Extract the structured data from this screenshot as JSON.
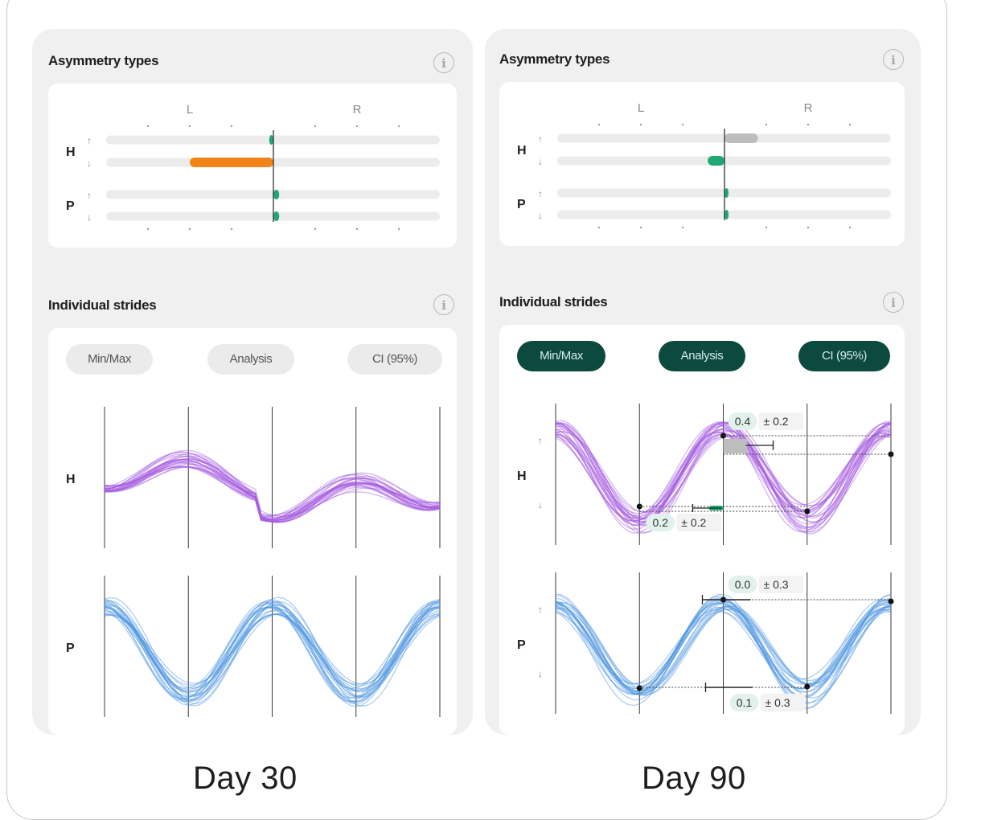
{
  "section_titles": {
    "asymmetry": "Asymmetry types",
    "strides": "Individual strides"
  },
  "icons": {
    "info": "info-icon",
    "up_arrow": "↑",
    "down_arrow": "↓",
    "info_glyph": "i"
  },
  "toggle_labels": [
    "Min/Max",
    "Analysis",
    "CI (95%)"
  ],
  "colors": {
    "head_strides": "#a45be0",
    "pelvis_strides": "#4a93e0",
    "orange_bar": "#f08418",
    "green_bar": "#1ea874",
    "gray_bar": "#bdbdbd",
    "toggle_on": "#0c4a40"
  },
  "panels": [
    {
      "day_label": "Day 30",
      "toggles_active": false,
      "asymmetry": {
        "side_labels": [
          "L",
          "R"
        ],
        "rows": [
          {
            "group": "H",
            "arrow": "↑",
            "value": -0.05,
            "color": "green"
          },
          {
            "group": "H",
            "arrow": "↓",
            "value": -1.0,
            "color": "orange"
          },
          {
            "group": "P",
            "arrow": "↑",
            "value": 0.07,
            "color": "green"
          },
          {
            "group": "P",
            "arrow": "↓",
            "value": 0.07,
            "color": "green"
          }
        ]
      },
      "strides": {
        "rows": [
          {
            "label": "H",
            "arrows": [
              "",
              ""
            ]
          },
          {
            "label": "P",
            "arrows": [
              "",
              ""
            ]
          }
        ],
        "annotations": []
      }
    },
    {
      "day_label": "Day 90",
      "toggles_active": true,
      "asymmetry": {
        "side_labels": [
          "L",
          "R"
        ],
        "rows": [
          {
            "group": "H",
            "arrow": "↑",
            "value": 0.4,
            "color": "gray"
          },
          {
            "group": "H",
            "arrow": "↓",
            "value": -0.2,
            "color": "green"
          },
          {
            "group": "P",
            "arrow": "↑",
            "value": 0.0,
            "color": "green"
          },
          {
            "group": "P",
            "arrow": "↓",
            "value": 0.05,
            "color": "green"
          }
        ]
      },
      "strides": {
        "rows": [
          {
            "label": "H",
            "arrows": [
              "↑",
              "↓"
            ]
          },
          {
            "label": "P",
            "arrows": [
              "↑",
              "↓"
            ]
          }
        ],
        "annotations": [
          {
            "row": "H",
            "kind": "max",
            "value": "0.4",
            "ci": "± 0.2"
          },
          {
            "row": "H",
            "kind": "min",
            "value": "0.2",
            "ci": "± 0.2"
          },
          {
            "row": "P",
            "kind": "max",
            "value": "0.0",
            "ci": "± 0.3"
          },
          {
            "row": "P",
            "kind": "min",
            "value": "0.1",
            "ci": "± 0.3"
          }
        ]
      }
    }
  ],
  "chart_data": [
    {
      "type": "bar",
      "panel": "Day 30",
      "categories": [
        "H ↑",
        "H ↓",
        "P ↑",
        "P ↓"
      ],
      "values": [
        -0.05,
        -1.0,
        0.07,
        0.07
      ],
      "xlabel": "",
      "ylabel": "",
      "xlim": [
        -2,
        2
      ],
      "side_labels": [
        "L",
        "R"
      ]
    },
    {
      "type": "bar",
      "panel": "Day 90",
      "categories": [
        "H ↑",
        "H ↓",
        "P ↑",
        "P ↓"
      ],
      "values": [
        0.4,
        -0.2,
        0.0,
        0.05
      ],
      "xlabel": "",
      "ylabel": "",
      "xlim": [
        -2,
        2
      ],
      "side_labels": [
        "L",
        "R"
      ]
    },
    {
      "type": "line",
      "panel": "Day 90",
      "series": [
        {
          "name": "H",
          "max_asymmetry": 0.4,
          "max_ci": 0.2,
          "min_asymmetry": 0.2,
          "min_ci": 0.2
        },
        {
          "name": "P",
          "max_asymmetry": 0.0,
          "max_ci": 0.3,
          "min_asymmetry": 0.1,
          "min_ci": 0.3
        }
      ]
    }
  ]
}
